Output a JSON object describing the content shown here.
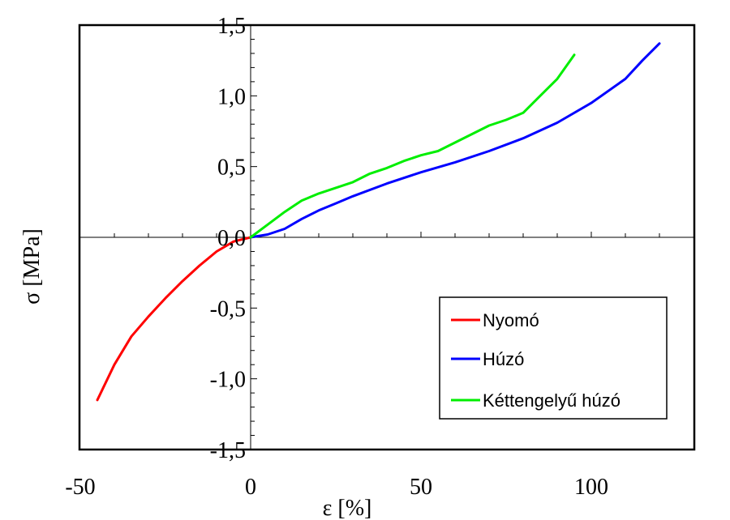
{
  "chart_data": {
    "type": "line",
    "title": "",
    "xlabel": "ε [%]",
    "ylabel": "σ [MPa]",
    "xlim": [
      -50,
      130
    ],
    "ylim": [
      -1.5,
      1.5
    ],
    "x_ticks": [
      {
        "value": -50,
        "label": "-50"
      },
      {
        "value": 0,
        "label": "0"
      },
      {
        "value": 50,
        "label": "50"
      },
      {
        "value": 100,
        "label": "100"
      }
    ],
    "y_ticks": [
      {
        "value": 1.5,
        "label": "1,5"
      },
      {
        "value": 1.0,
        "label": "1,0"
      },
      {
        "value": 0.5,
        "label": "0,5"
      },
      {
        "value": 0.0,
        "label": "0,0"
      },
      {
        "value": -0.5,
        "label": "-0,5"
      },
      {
        "value": -1.0,
        "label": "-1,0"
      },
      {
        "value": -1.5,
        "label": "-1,5"
      }
    ],
    "legend_position": "bottom-right",
    "grid": false,
    "series": [
      {
        "name": "Nyomó",
        "color": "#ff0000",
        "points": [
          [
            -45,
            -1.15
          ],
          [
            -40,
            -0.9
          ],
          [
            -35,
            -0.7
          ],
          [
            -30,
            -0.56
          ],
          [
            -25,
            -0.43
          ],
          [
            -20,
            -0.31
          ],
          [
            -15,
            -0.2
          ],
          [
            -10,
            -0.1
          ],
          [
            -5,
            -0.03
          ],
          [
            0,
            0
          ]
        ]
      },
      {
        "name": "Húzó",
        "color": "#0000ff",
        "points": [
          [
            0,
            0
          ],
          [
            5,
            0.02
          ],
          [
            10,
            0.06
          ],
          [
            15,
            0.13
          ],
          [
            20,
            0.19
          ],
          [
            25,
            0.24
          ],
          [
            30,
            0.29
          ],
          [
            40,
            0.38
          ],
          [
            50,
            0.46
          ],
          [
            60,
            0.53
          ],
          [
            70,
            0.61
          ],
          [
            80,
            0.7
          ],
          [
            90,
            0.81
          ],
          [
            100,
            0.95
          ],
          [
            110,
            1.12
          ],
          [
            115,
            1.25
          ],
          [
            120,
            1.37
          ]
        ]
      },
      {
        "name": "Kéttengelyű húzó",
        "color": "#00ee00",
        "points": [
          [
            0,
            0
          ],
          [
            5,
            0.09
          ],
          [
            10,
            0.18
          ],
          [
            15,
            0.26
          ],
          [
            20,
            0.31
          ],
          [
            25,
            0.35
          ],
          [
            30,
            0.39
          ],
          [
            35,
            0.45
          ],
          [
            40,
            0.49
          ],
          [
            45,
            0.54
          ],
          [
            50,
            0.58
          ],
          [
            55,
            0.61
          ],
          [
            60,
            0.67
          ],
          [
            65,
            0.73
          ],
          [
            70,
            0.79
          ],
          [
            75,
            0.83
          ],
          [
            80,
            0.88
          ],
          [
            85,
            1.0
          ],
          [
            90,
            1.12
          ],
          [
            95,
            1.29
          ]
        ]
      }
    ]
  }
}
